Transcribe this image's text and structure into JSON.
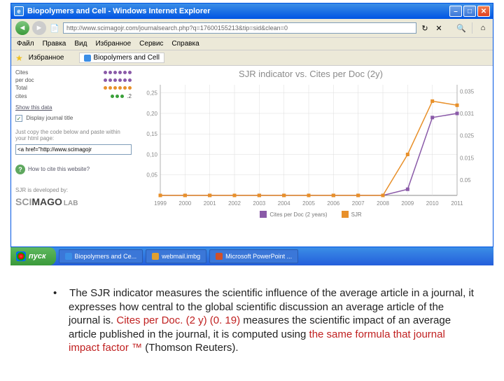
{
  "window": {
    "title": "Biopolymers and Cell - Windows Internet Explorer",
    "url": "http://www.scimagojr.com/journalsearch.php?q=17600155213&tip=sid&clean=0"
  },
  "menu": [
    "Файл",
    "Правка",
    "Вид",
    "Избранное",
    "Сервис",
    "Справка"
  ],
  "favbar": {
    "label": "Избранное",
    "tab": "Biopolymers and Cell"
  },
  "toolbar_icons": {
    "refresh": "↻",
    "stop": "✕",
    "search": "🔍",
    "home": "⌂"
  },
  "sidebar": {
    "mini": {
      "rows": [
        {
          "color": "#8a5aa8",
          "label": "Cites"
        },
        {
          "color": "#8a5aa8",
          "label": "per doc"
        },
        {
          "color": "#e8902a",
          "label": "Total"
        },
        {
          "color": "#3aa03a",
          "label": "cites"
        }
      ],
      "extra": ".2"
    },
    "show_link": "Show this data",
    "display_chk": "Display journal title",
    "copy_text": "Just copy the code below and paste within your html page:",
    "code_value": "<a href=\"http://www.scimagojr",
    "cite": "How to cite this website?",
    "devby": "SJR is developed by:",
    "logo": {
      "sci": "SCI",
      "mago": "MAGO",
      "lab": "LAB"
    }
  },
  "chart": {
    "title": "SJR indicator vs. Cites per Doc (2y)",
    "left_axis": {
      "ticks": [
        0.25,
        0.2,
        0.15,
        0.1,
        0.05
      ],
      "labels": [
        "0,25",
        "0,20",
        "0,15",
        "0,10",
        "0,05"
      ]
    },
    "right_axis": {
      "ticks": [
        0.035,
        0.031,
        0.025,
        0.015,
        0.05
      ],
      "labels": [
        "0.035",
        "0.031",
        "0.025",
        "0.015",
        "0.05"
      ]
    },
    "x_labels": [
      "1999",
      "2000",
      "2001",
      "2002",
      "2003",
      "2004",
      "2005",
      "2006",
      "2007",
      "2008",
      "2009",
      "2010",
      "2011"
    ],
    "series": [
      {
        "name": "Cites per Doc (2 years)",
        "color": "#8a5aa8",
        "values": [
          0,
          0,
          0,
          0,
          0,
          0,
          0,
          0,
          0,
          0,
          0.015,
          0.19,
          0.2
        ]
      },
      {
        "name": "SJR",
        "color": "#e8902a",
        "values": [
          0,
          0,
          0,
          0,
          0,
          0,
          0,
          0,
          0,
          0,
          0.1,
          0.23,
          0.22
        ]
      }
    ],
    "y_min": 0,
    "y_max": 0.27,
    "grid_color": "#dddddd",
    "axis_color": "#888888"
  },
  "taskbar": {
    "start": "пуск",
    "tasks": [
      "Biopolymers and Ce...",
      "webmail.imbg",
      "Microsoft PowerPoint ..."
    ]
  },
  "description": {
    "text_1": "The SJR indicator measures the scientific influence of the average article in a journal, it expresses how central to the global scientific discussion an average article of the journal is. ",
    "red_1": "Cites per Doc. (2 y) (0. 19)",
    "text_2": " measures the scientific impact of an average article published in the journal, it is computed using ",
    "red_2": "the same formula that journal impact factor ™",
    "text_3": " (Thomson Reuters)."
  }
}
